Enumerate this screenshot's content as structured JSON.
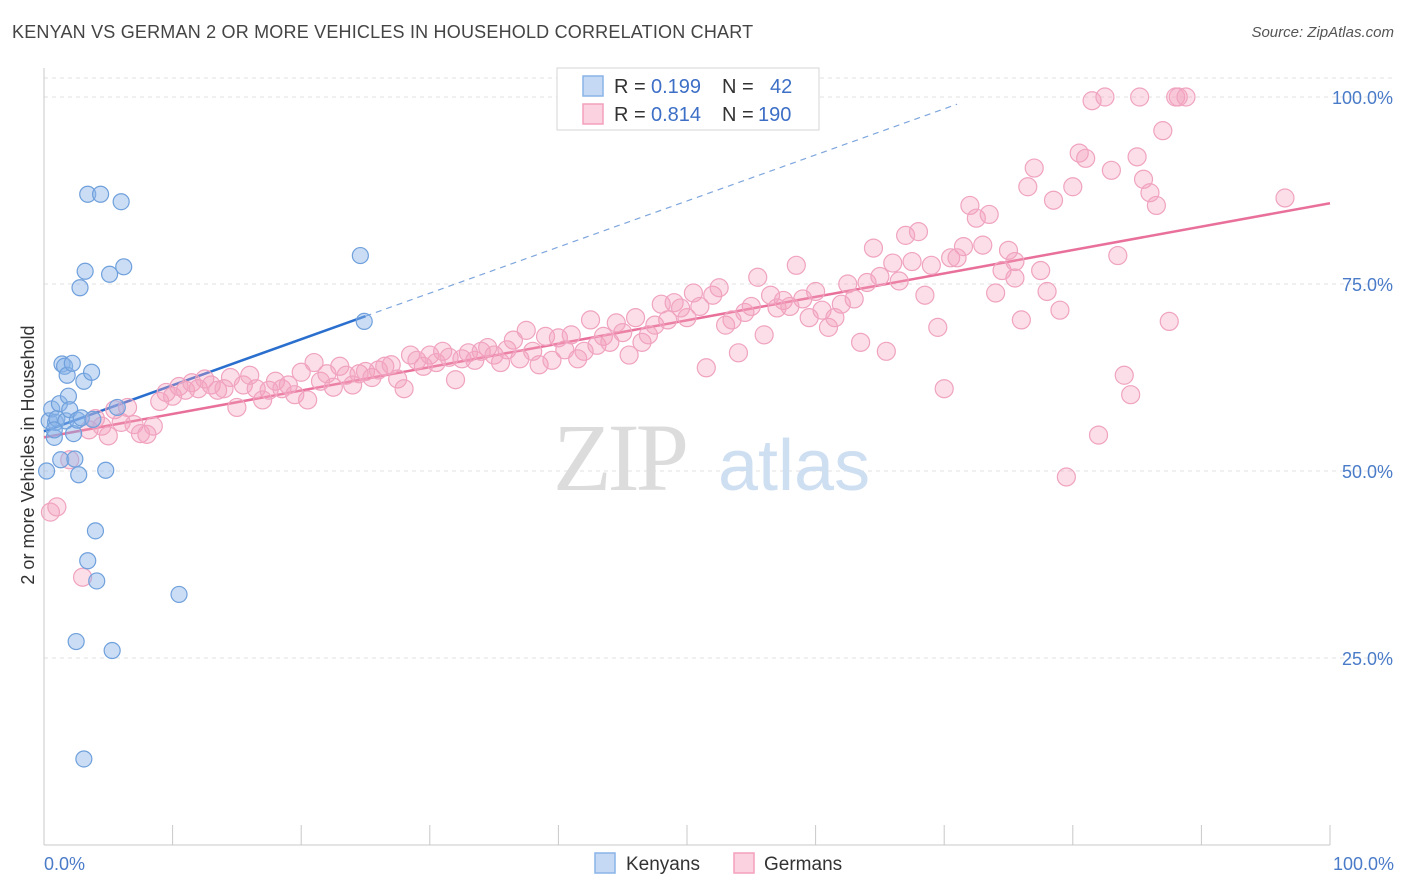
{
  "title": "KENYAN VS GERMAN 2 OR MORE VEHICLES IN HOUSEHOLD CORRELATION CHART",
  "source": "Source: ZipAtlas.com",
  "colors": {
    "kenyans": "#8ab4e8",
    "germans": "#f4a0bc",
    "kenyans_line": "#2b6fce",
    "germans_line": "#e8709a",
    "axis_text": "#4a7bc8"
  },
  "legend": {
    "rows": [
      {
        "r_label": "R =",
        "r_value": "0.199",
        "n_label": "N =",
        "n_value": "42"
      },
      {
        "r_label": "R =",
        "r_value": "0.814",
        "n_label": "N =",
        "n_value": "190"
      }
    ]
  },
  "bottom_legend": {
    "kenyans": "Kenyans",
    "germans": "Germans"
  },
  "watermark": {
    "zip": "ZIP",
    "atlas": "atlas"
  },
  "chart_data": {
    "type": "scatter",
    "xlabel": "",
    "ylabel": "2 or more Vehicles in Household",
    "xlim": [
      0,
      100
    ],
    "ylim": [
      0,
      102
    ],
    "x_tick_labels": [
      "0.0%",
      "100.0%"
    ],
    "y_ticks": [
      25,
      50,
      75,
      100
    ],
    "y_tick_labels": [
      "25.0%",
      "50.0%",
      "75.0%",
      "100.0%"
    ],
    "grid": true,
    "legend_position": "top-center",
    "series": [
      {
        "name": "Kenyans",
        "r": 0.199,
        "n": 42,
        "trend": {
          "x0": 0,
          "y0": 55.3,
          "x1": 25,
          "y1": 70.7,
          "dashed_to_x": 71
        },
        "points": [
          [
            0.2,
            50
          ],
          [
            0.4,
            56.7
          ],
          [
            0.6,
            58.3
          ],
          [
            0.8,
            54.5
          ],
          [
            0.9,
            56.5
          ],
          [
            1.0,
            57
          ],
          [
            1.2,
            59
          ],
          [
            1.3,
            51.5
          ],
          [
            1.4,
            64.3
          ],
          [
            1.6,
            64
          ],
          [
            1.7,
            56.7
          ],
          [
            1.8,
            62.8
          ],
          [
            1.9,
            60
          ],
          [
            2.0,
            58.2
          ],
          [
            2.2,
            64.4
          ],
          [
            2.3,
            55
          ],
          [
            2.4,
            51.6
          ],
          [
            2.6,
            56.8
          ],
          [
            2.5,
            27.2
          ],
          [
            2.7,
            49.5
          ],
          [
            2.8,
            74.5
          ],
          [
            2.9,
            57.1
          ],
          [
            3.1,
            62
          ],
          [
            3.2,
            76.7
          ],
          [
            3.4,
            38
          ],
          [
            3.4,
            87
          ],
          [
            3.7,
            63.2
          ],
          [
            3.8,
            56.9
          ],
          [
            4.0,
            42
          ],
          [
            4.1,
            35.3
          ],
          [
            4.4,
            87
          ],
          [
            4.8,
            50.1
          ],
          [
            5.1,
            76.3
          ],
          [
            5.3,
            26
          ],
          [
            5.7,
            58.5
          ],
          [
            6.0,
            86
          ],
          [
            6.2,
            77.3
          ],
          [
            10.5,
            33.5
          ],
          [
            24.6,
            78.8
          ],
          [
            24.9,
            70
          ],
          [
            3.1,
            11.5
          ],
          [
            0.8,
            55.5
          ]
        ]
      },
      {
        "name": "Germans",
        "r": 0.814,
        "n": 190,
        "trend": {
          "x0": 0,
          "y0": 54.5,
          "x1": 100,
          "y1": 85.8
        },
        "points": [
          [
            0.5,
            44.5
          ],
          [
            1.0,
            45.2
          ],
          [
            2.0,
            51.5
          ],
          [
            3.0,
            35.8
          ],
          [
            3.5,
            55.5
          ],
          [
            4.0,
            57
          ],
          [
            4.5,
            56
          ],
          [
            5.0,
            54.7
          ],
          [
            5.5,
            58.2
          ],
          [
            6.0,
            56.5
          ],
          [
            6.5,
            58.5
          ],
          [
            7.0,
            56.2
          ],
          [
            7.5,
            55
          ],
          [
            8.0,
            54.9
          ],
          [
            8.5,
            56
          ],
          [
            9.0,
            59.3
          ],
          [
            9.5,
            60.5
          ],
          [
            10.0,
            60
          ],
          [
            10.5,
            61.3
          ],
          [
            11.0,
            60.8
          ],
          [
            11.5,
            61.8
          ],
          [
            12.0,
            61
          ],
          [
            12.5,
            62.3
          ],
          [
            13.0,
            61.5
          ],
          [
            13.5,
            60.8
          ],
          [
            14.0,
            61
          ],
          [
            14.5,
            62.5
          ],
          [
            15.0,
            58.5
          ],
          [
            15.5,
            61.5
          ],
          [
            16.0,
            62.8
          ],
          [
            16.5,
            61
          ],
          [
            17.0,
            59.5
          ],
          [
            17.5,
            60.8
          ],
          [
            18.0,
            62
          ],
          [
            18.5,
            61
          ],
          [
            19.0,
            61.5
          ],
          [
            19.5,
            60.2
          ],
          [
            20.0,
            63.2
          ],
          [
            20.5,
            59.5
          ],
          [
            21.0,
            64.5
          ],
          [
            21.5,
            62
          ],
          [
            22.0,
            63
          ],
          [
            22.5,
            61.2
          ],
          [
            23.0,
            64
          ],
          [
            23.5,
            62.8
          ],
          [
            24.0,
            61.5
          ],
          [
            24.5,
            63
          ],
          [
            25.0,
            63.3
          ],
          [
            25.5,
            62.5
          ],
          [
            26.0,
            63.5
          ],
          [
            26.5,
            64
          ],
          [
            27.0,
            64.2
          ],
          [
            27.5,
            62.3
          ],
          [
            28.0,
            61
          ],
          [
            28.5,
            65.5
          ],
          [
            29.0,
            64.8
          ],
          [
            29.5,
            64
          ],
          [
            30.0,
            65.5
          ],
          [
            30.5,
            64.5
          ],
          [
            31.0,
            66
          ],
          [
            31.5,
            65.2
          ],
          [
            32.0,
            62.2
          ],
          [
            32.5,
            65
          ],
          [
            33.0,
            65.8
          ],
          [
            33.5,
            64.8
          ],
          [
            34.0,
            66
          ],
          [
            34.5,
            66.5
          ],
          [
            35.0,
            65.5
          ],
          [
            35.5,
            64.5
          ],
          [
            36.0,
            66.2
          ],
          [
            36.5,
            67.5
          ],
          [
            37.0,
            65
          ],
          [
            37.5,
            68.8
          ],
          [
            38.0,
            66
          ],
          [
            38.5,
            64.2
          ],
          [
            39.0,
            68
          ],
          [
            39.5,
            64.8
          ],
          [
            40.0,
            67.8
          ],
          [
            40.5,
            66.2
          ],
          [
            41.0,
            68.2
          ],
          [
            41.5,
            65
          ],
          [
            42.0,
            66
          ],
          [
            42.5,
            70.2
          ],
          [
            43.0,
            66.8
          ],
          [
            43.5,
            68
          ],
          [
            44.0,
            67.2
          ],
          [
            44.5,
            69.8
          ],
          [
            45.0,
            68.5
          ],
          [
            45.5,
            65.5
          ],
          [
            46.0,
            70.5
          ],
          [
            46.5,
            67.2
          ],
          [
            47.0,
            68.2
          ],
          [
            47.5,
            69.5
          ],
          [
            48.0,
            72.3
          ],
          [
            48.5,
            70.2
          ],
          [
            49.0,
            72.5
          ],
          [
            49.5,
            71.8
          ],
          [
            50.0,
            70.5
          ],
          [
            50.5,
            73.8
          ],
          [
            51.0,
            72
          ],
          [
            51.5,
            63.8
          ],
          [
            52.0,
            73.5
          ],
          [
            52.5,
            74.5
          ],
          [
            53.0,
            69.5
          ],
          [
            53.5,
            70.2
          ],
          [
            54.0,
            65.8
          ],
          [
            54.5,
            71.2
          ],
          [
            55.0,
            72
          ],
          [
            55.5,
            75.9
          ],
          [
            56.0,
            68.2
          ],
          [
            56.5,
            73.5
          ],
          [
            57.0,
            71.8
          ],
          [
            57.5,
            72.8
          ],
          [
            58.0,
            72
          ],
          [
            58.5,
            77.5
          ],
          [
            59.0,
            73
          ],
          [
            59.5,
            70.5
          ],
          [
            60.0,
            74
          ],
          [
            60.5,
            71.5
          ],
          [
            61.0,
            69.2
          ],
          [
            61.5,
            70.5
          ],
          [
            62.0,
            72.3
          ],
          [
            62.5,
            75
          ],
          [
            63.0,
            73
          ],
          [
            63.5,
            67.2
          ],
          [
            64.0,
            75.2
          ],
          [
            64.5,
            79.8
          ],
          [
            65.0,
            76
          ],
          [
            65.5,
            66
          ],
          [
            66.0,
            77.8
          ],
          [
            66.5,
            75.4
          ],
          [
            67.0,
            81.5
          ],
          [
            67.5,
            78
          ],
          [
            68.0,
            82
          ],
          [
            68.5,
            73.5
          ],
          [
            69.0,
            77.5
          ],
          [
            69.5,
            69.2
          ],
          [
            70.0,
            61
          ],
          [
            70.5,
            78.5
          ],
          [
            71.0,
            78.5
          ],
          [
            71.5,
            80
          ],
          [
            72.0,
            85.5
          ],
          [
            72.5,
            83.8
          ],
          [
            73.0,
            80.2
          ],
          [
            73.5,
            84.3
          ],
          [
            74.0,
            73.8
          ],
          [
            74.5,
            76.8
          ],
          [
            75.0,
            79.5
          ],
          [
            75.5,
            78
          ],
          [
            76.0,
            70.2
          ],
          [
            76.5,
            88
          ],
          [
            77.0,
            90.5
          ],
          [
            77.5,
            76.8
          ],
          [
            78.0,
            74
          ],
          [
            78.5,
            86.2
          ],
          [
            79.0,
            71.5
          ],
          [
            79.5,
            49.2
          ],
          [
            80.0,
            88
          ],
          [
            80.5,
            92.5
          ],
          [
            81.0,
            91.8
          ],
          [
            81.5,
            99.5
          ],
          [
            82.0,
            54.8
          ],
          [
            82.5,
            100
          ],
          [
            83.0,
            90.2
          ],
          [
            83.5,
            78.8
          ],
          [
            84.0,
            62.8
          ],
          [
            84.5,
            60.2
          ],
          [
            85.0,
            92
          ],
          [
            85.5,
            89
          ],
          [
            86.0,
            87.2
          ],
          [
            86.5,
            85.5
          ],
          [
            87.0,
            95.5
          ],
          [
            87.5,
            70
          ],
          [
            88.0,
            100
          ],
          [
            88.2,
            100
          ],
          [
            88.8,
            100
          ],
          [
            96.5,
            86.5
          ],
          [
            85.2,
            100
          ],
          [
            75.5,
            75.8
          ]
        ]
      }
    ]
  }
}
